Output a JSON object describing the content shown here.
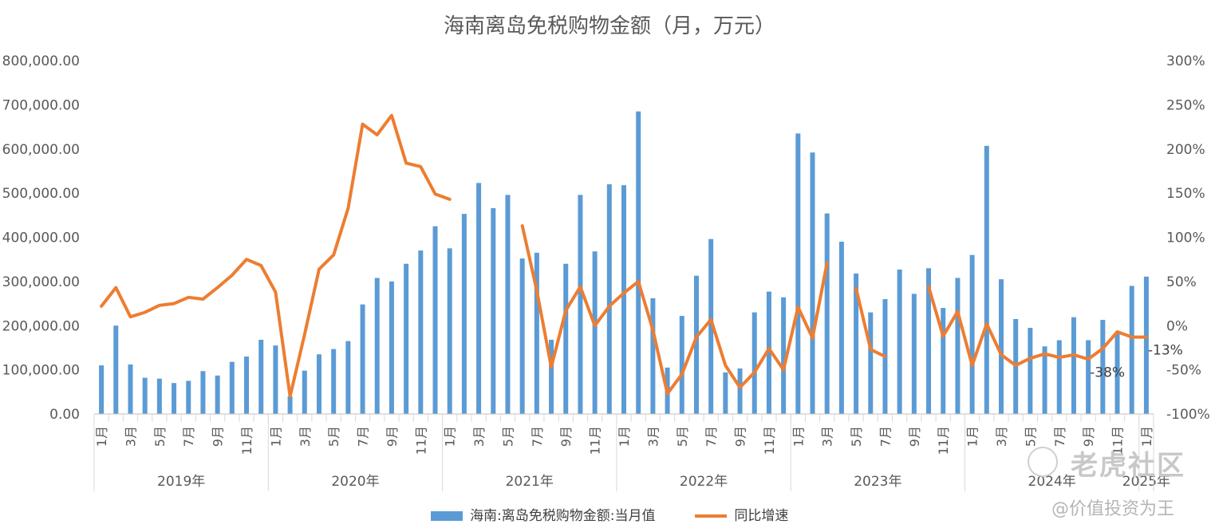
{
  "chart_data": {
    "type": "bar+line",
    "title": "海南离岛免税购物金额（月，万元）",
    "y_left": {
      "min": 0,
      "max": 800000,
      "ticks": [
        "0.00",
        "100,000.00",
        "200,000.00",
        "300,000.00",
        "400,000.00",
        "500,000.00",
        "600,000.00",
        "700,000.00",
        "800,000.00"
      ]
    },
    "y_right": {
      "min": -100,
      "max": 300,
      "ticks": [
        "-100%",
        "-50%",
        "0%",
        "50%",
        "100%",
        "150%",
        "200%",
        "250%",
        "300%"
      ]
    },
    "years": [
      "2019年",
      "2020年",
      "2021年",
      "2022年",
      "2023年",
      "2024年",
      "2025年"
    ],
    "month_labels": [
      "1月",
      "",
      "3月",
      "",
      "5月",
      "",
      "7月",
      "",
      "9月",
      "",
      "11月",
      ""
    ],
    "series": [
      {
        "name": "海南:离岛免税购物金额:当月值",
        "kind": "bar",
        "color": "#5b9bd5",
        "values": [
          110000,
          200000,
          112000,
          82000,
          80000,
          70000,
          75000,
          97000,
          87000,
          118000,
          130000,
          168000,
          155000,
          40000,
          98000,
          135000,
          147000,
          165000,
          248000,
          308000,
          300000,
          340000,
          370000,
          425000,
          375000,
          453000,
          523000,
          466000,
          496000,
          352000,
          365000,
          168000,
          340000,
          496000,
          368000,
          520000,
          518000,
          685000,
          262000,
          105000,
          222000,
          313000,
          396000,
          94000,
          103000,
          230000,
          277000,
          264000,
          635000,
          592000,
          454000,
          390000,
          318000,
          230000,
          260000,
          327000,
          272000,
          330000,
          240000,
          308000,
          360000,
          607000,
          305000,
          215000,
          195000,
          153000,
          167000,
          219000,
          167000,
          213000,
          186000,
          290000,
          311000
        ]
      },
      {
        "name": "同比增速",
        "kind": "line",
        "color": "#ed7d31",
        "values": [
          22,
          43,
          10,
          15,
          23,
          25,
          32,
          30,
          43,
          57,
          75,
          68,
          38,
          -80,
          -10,
          64,
          80,
          133,
          228,
          216,
          238,
          184,
          180,
          149,
          143,
          null,
          null,
          null,
          null,
          113,
          40,
          -47,
          17,
          44,
          0,
          22,
          37,
          50,
          -5,
          -77,
          -55,
          -13,
          7,
          -45,
          -70,
          -53,
          -26,
          -50,
          21,
          -14,
          71,
          null,
          42,
          -27,
          -35,
          null,
          null,
          44,
          -12,
          16,
          -45,
          2,
          -33,
          -45,
          -37,
          -32,
          -36,
          -33,
          -38,
          -26,
          -7,
          -13,
          -13
        ]
      }
    ],
    "annotations": [
      {
        "index": 68,
        "text": "-38%"
      },
      {
        "index": 72,
        "text": "-13%"
      }
    ]
  },
  "watermark": {
    "logo": "老虎社区",
    "author": "@价值投资为王"
  }
}
